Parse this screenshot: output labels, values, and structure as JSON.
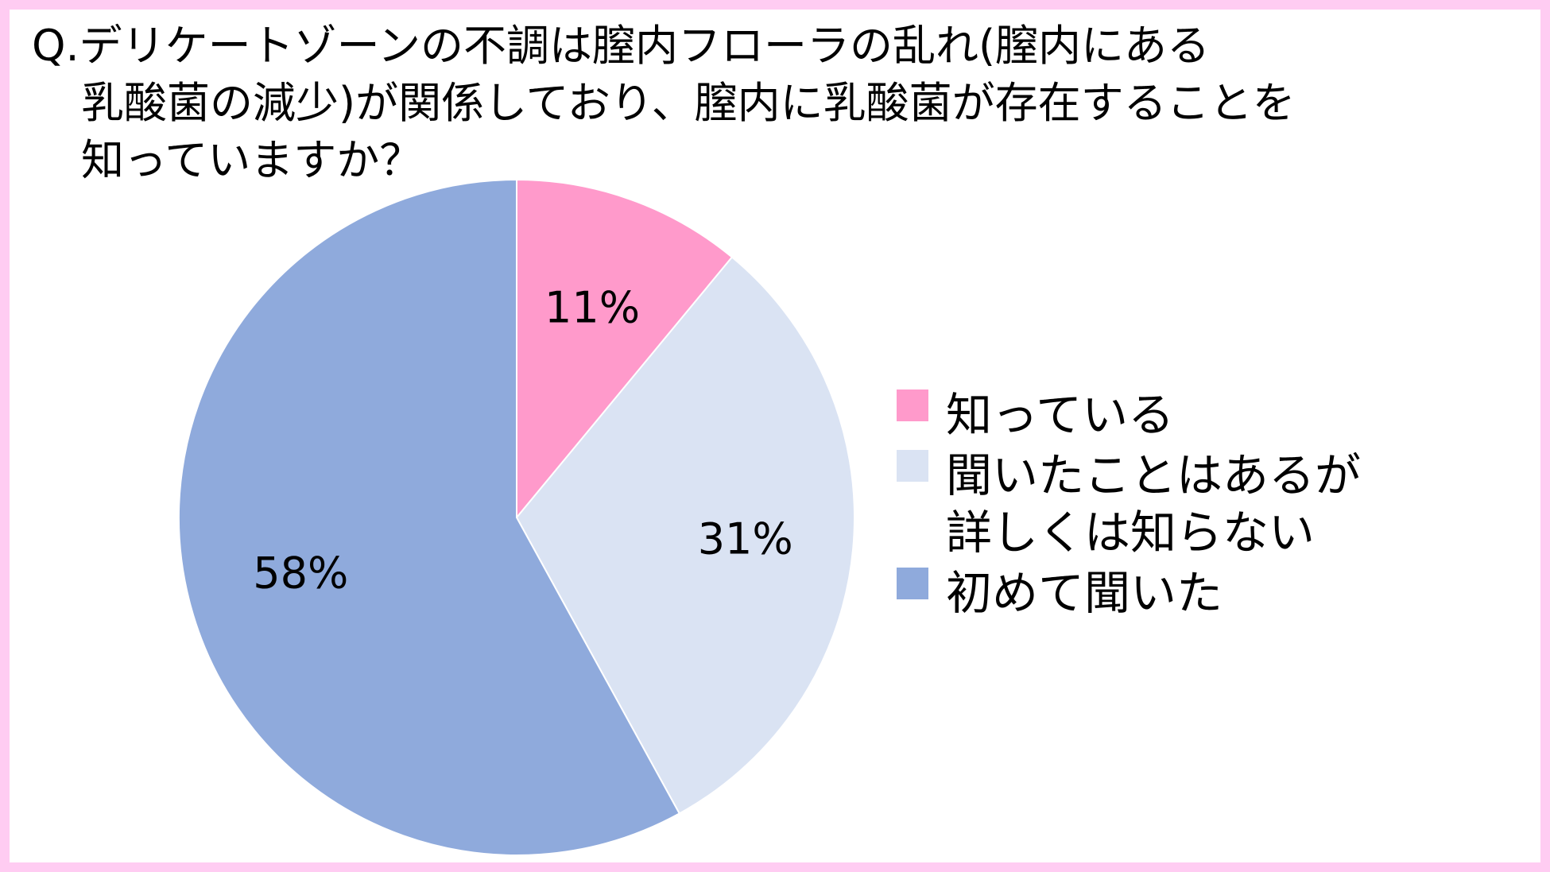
{
  "chart_data": {
    "type": "pie",
    "title_lines": [
      "Q.デリケートゾーンの不調は膣内フローラの乱れ(膣内にある",
      "乳酸菌の減少)が関係しており、膣内に乳酸菌が存在することを",
      "知っていますか？"
    ],
    "slices": [
      {
        "label_lines": [
          "知っている"
        ],
        "value": 11,
        "value_label": "11%",
        "color": "#FF9ACB"
      },
      {
        "label_lines": [
          "聞いたことはあるが",
          "詳しくは知らない"
        ],
        "value": 31,
        "value_label": "31%",
        "color": "#DAE3F3"
      },
      {
        "label_lines": [
          "初めて聞いた"
        ],
        "value": 58,
        "value_label": "58%",
        "color": "#8FAADC"
      }
    ],
    "start_angle_deg": 0,
    "direction": "clockwise",
    "legend_position": "right",
    "border_color": "#FFCCF2"
  }
}
